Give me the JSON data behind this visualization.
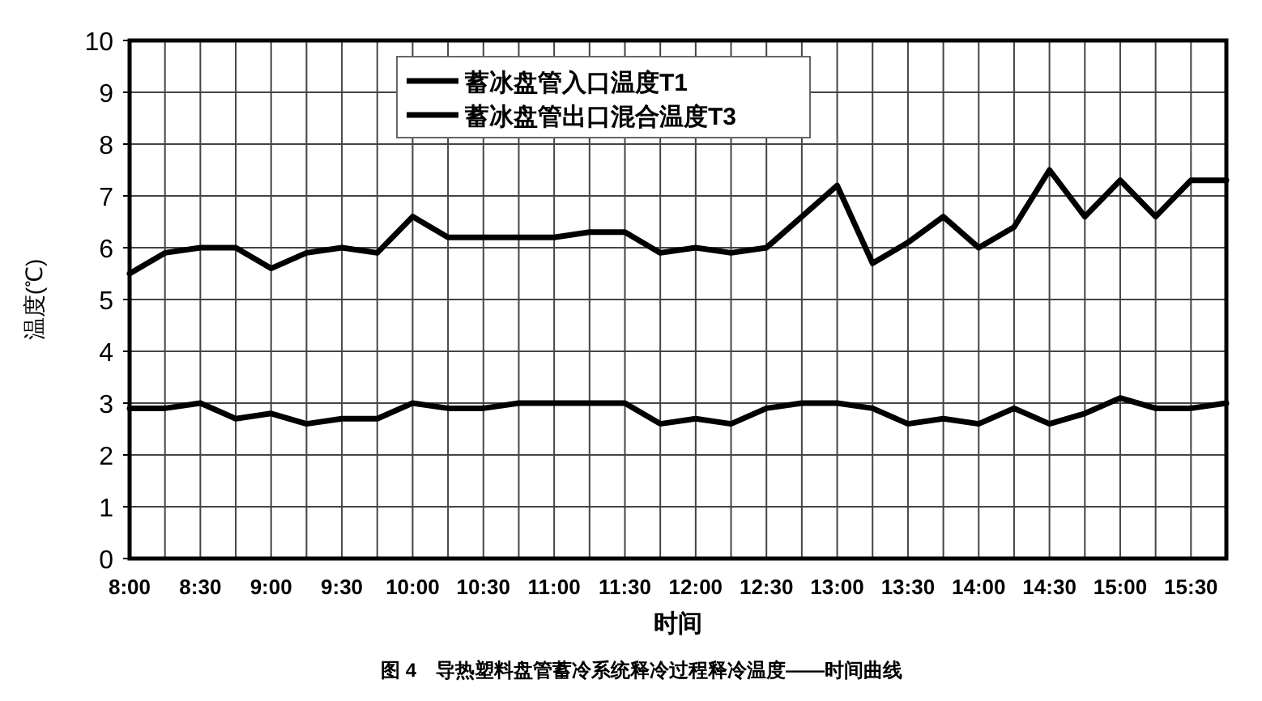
{
  "chart_data": {
    "type": "line",
    "xlabel": "时间",
    "ylabel": "温度(℃)",
    "annotations": [
      "图 4　导热塑料盘管蓄冷系统释冷过程释冷温度——时间曲线"
    ],
    "x": [
      8,
      8.25,
      8.5,
      8.75,
      9,
      9.25,
      9.5,
      9.75,
      10,
      10.25,
      10.5,
      10.75,
      11,
      11.25,
      11.5,
      11.75,
      12,
      12.25,
      12.5,
      12.75,
      13,
      13.25,
      13.5,
      13.75,
      14,
      14.25,
      14.5,
      14.75,
      15,
      15.25,
      15.5,
      15.75
    ],
    "series": [
      {
        "name": "蓄冰盘管入口温度T1",
        "color": "#000000",
        "values": [
          2.9,
          2.9,
          3.0,
          2.7,
          2.8,
          2.6,
          2.7,
          2.7,
          3.0,
          2.9,
          2.9,
          3.0,
          3.0,
          3.0,
          3.0,
          2.6,
          2.7,
          2.6,
          2.9,
          3.0,
          3.0,
          2.9,
          2.6,
          2.7,
          2.6,
          2.9,
          2.6,
          2.8,
          3.1,
          2.9,
          2.9,
          3.0
        ]
      },
      {
        "name": "蓄冰盘管出口混合温度T3",
        "color": "#000000",
        "values": [
          5.5,
          5.9,
          6.0,
          6.0,
          5.6,
          5.9,
          6.0,
          5.9,
          6.6,
          6.2,
          6.2,
          6.2,
          6.2,
          6.3,
          6.3,
          5.9,
          6.0,
          5.9,
          6.0,
          6.6,
          7.2,
          5.7,
          6.1,
          6.6,
          6.0,
          6.4,
          7.5,
          6.6,
          7.3,
          6.6,
          7.3,
          7.3
        ]
      }
    ],
    "xlim": [
      8,
      15.75
    ],
    "xticks": [
      {
        "value": 8,
        "label": "8:00"
      },
      {
        "value": 8.25,
        "label": null
      },
      {
        "value": 8.5,
        "label": "8:30"
      },
      {
        "value": 8.75,
        "label": null
      },
      {
        "value": 9,
        "label": "9:00"
      },
      {
        "value": 9.25,
        "label": null
      },
      {
        "value": 9.5,
        "label": "9:30"
      },
      {
        "value": 9.75,
        "label": null
      },
      {
        "value": 10,
        "label": "10:00"
      },
      {
        "value": 10.25,
        "label": null
      },
      {
        "value": 10.5,
        "label": "10:30"
      },
      {
        "value": 10.75,
        "label": null
      },
      {
        "value": 11,
        "label": "11:00"
      },
      {
        "value": 11.25,
        "label": null
      },
      {
        "value": 11.5,
        "label": "11:30"
      },
      {
        "value": 11.75,
        "label": null
      },
      {
        "value": 12,
        "label": "12:00"
      },
      {
        "value": 12.25,
        "label": null
      },
      {
        "value": 12.5,
        "label": "12:30"
      },
      {
        "value": 12.75,
        "label": null
      },
      {
        "value": 13,
        "label": "13:00"
      },
      {
        "value": 13.25,
        "label": null
      },
      {
        "value": 13.5,
        "label": "13:30"
      },
      {
        "value": 13.75,
        "label": null
      },
      {
        "value": 14,
        "label": "14:00"
      },
      {
        "value": 14.25,
        "label": null
      },
      {
        "value": 14.5,
        "label": "14:30"
      },
      {
        "value": 14.75,
        "label": null
      },
      {
        "value": 15,
        "label": "15:00"
      },
      {
        "value": 15.25,
        "label": null
      },
      {
        "value": 15.5,
        "label": "15:30"
      },
      {
        "value": 15.75,
        "label": null
      }
    ],
    "ylim": [
      0,
      10
    ],
    "yticks": [
      0,
      1,
      2,
      3,
      4,
      5,
      6,
      7,
      8,
      9,
      10
    ],
    "grid": true,
    "legend": "top",
    "marker": "none",
    "line_style": "solid"
  }
}
